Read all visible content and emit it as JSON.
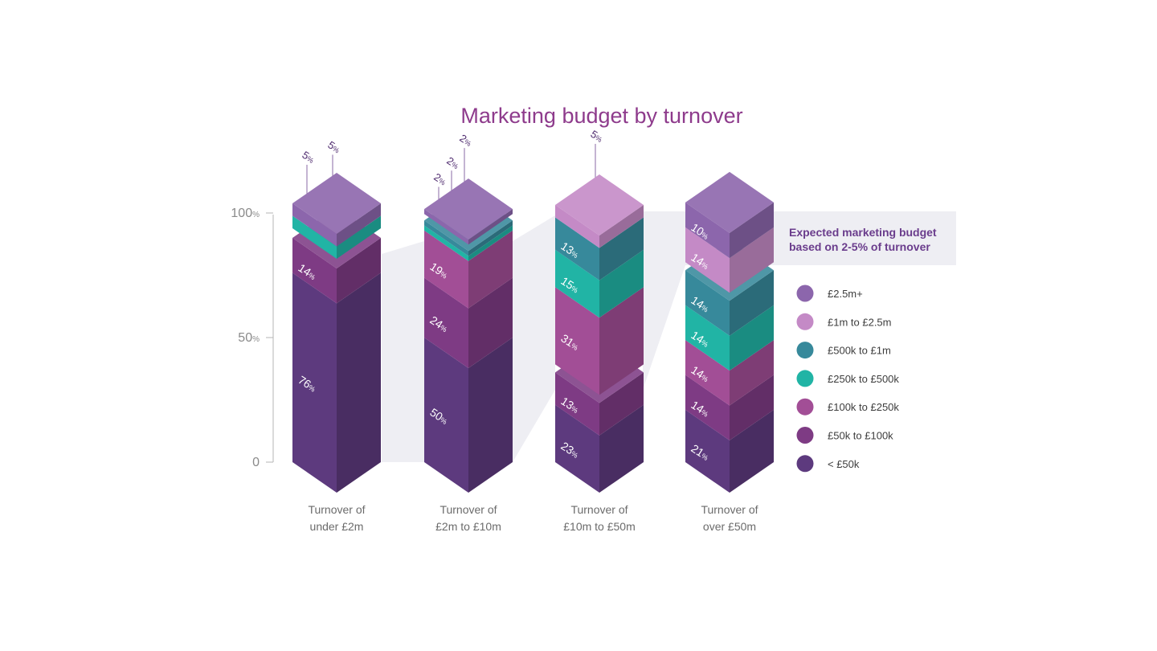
{
  "chart_data": {
    "type": "bar",
    "title": "Marketing budget by turnover",
    "y_ticks": [
      {
        "value": 100,
        "label": "100",
        "unit": "%"
      },
      {
        "value": 50,
        "label": "50",
        "unit": "%"
      },
      {
        "value": 0,
        "label": "0",
        "unit": ""
      }
    ],
    "ylim": [
      0,
      100
    ],
    "categories": [
      [
        "Turnover of",
        "under £2m"
      ],
      [
        "Turnover of",
        "£2m to £10m"
      ],
      [
        "Turnover of",
        "£10m to £50m"
      ],
      [
        "Turnover of",
        "over £50m"
      ]
    ],
    "series": [
      {
        "name": "< £50k",
        "color": "#5d3a7e",
        "values": [
          76,
          50,
          23,
          21
        ]
      },
      {
        "name": "£50k to £100k",
        "color": "#7e3b84",
        "values": [
          14,
          24,
          13,
          14
        ]
      },
      {
        "name": "£100k to £250k",
        "color": "#a24e96",
        "values": [
          0,
          19,
          31,
          14
        ]
      },
      {
        "name": "£250k to £500k",
        "color": "#21b4a5",
        "values": [
          5,
          2,
          15,
          14
        ]
      },
      {
        "name": "£500k to £1m",
        "color": "#37899b",
        "values": [
          0,
          2,
          13,
          14
        ]
      },
      {
        "name": "£1m to £2.5m",
        "color": "#c48ac6",
        "values": [
          0,
          0,
          5,
          14
        ]
      },
      {
        "name": "£2.5m+",
        "color": "#8c66ac",
        "values": [
          5,
          2,
          0,
          10
        ]
      }
    ],
    "legend_order": [
      "£2.5m+",
      "£1m to £2.5m",
      "£500k to £1m",
      "£250k to £500k",
      "£100k to £250k",
      "£50k to £100k",
      "< £50k"
    ],
    "annotation": [
      "Expected marketing budget",
      "based on 2-5% of turnover"
    ],
    "percent_unit": "%",
    "legend_position": "right"
  }
}
